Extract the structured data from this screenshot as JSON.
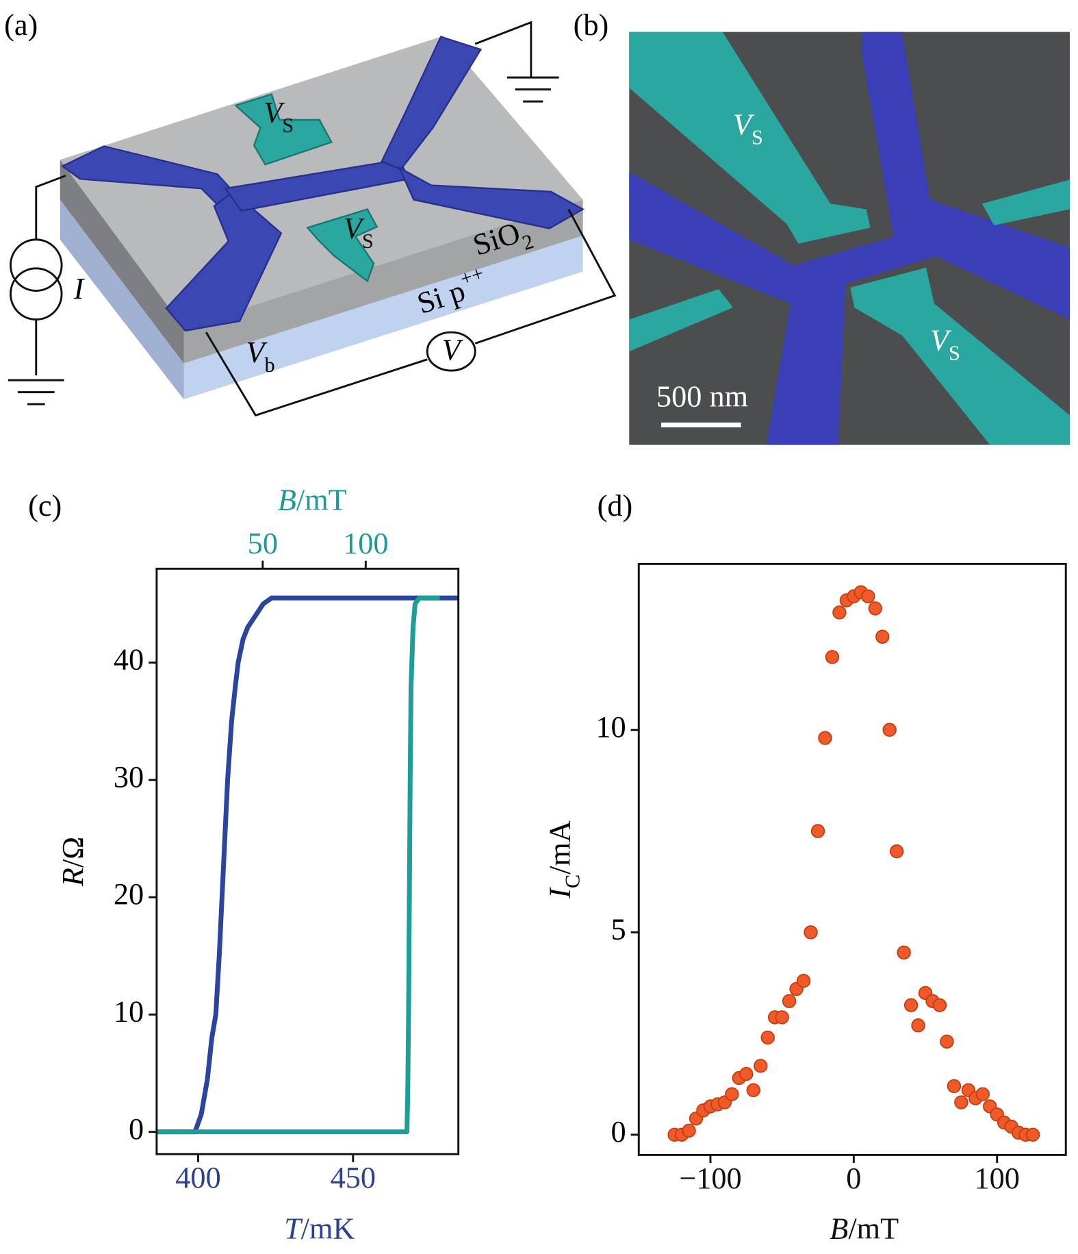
{
  "panel_a": {
    "label": "(a)",
    "vs_top": {
      "main": "V",
      "sub": "S"
    },
    "vs_bottom": {
      "main": "V",
      "sub": "S"
    },
    "sio2": {
      "main": "SiO",
      "sub": "2"
    },
    "si": {
      "main": "Si p",
      "sup": "++"
    },
    "current": "I",
    "vb": {
      "main": "V",
      "sub": "b"
    },
    "voltmeter": "V"
  },
  "panel_b": {
    "label": "(b)",
    "vs_top": {
      "main": "V",
      "sub": "S"
    },
    "vs_bottom": {
      "main": "V",
      "sub": "S"
    },
    "scale": "500 nm"
  },
  "chart_data": [
    {
      "type": "line",
      "label": "(c)",
      "xlabel": {
        "main": "T",
        "unit": "/mK"
      },
      "x2label": {
        "main": "B",
        "unit": "/mT"
      },
      "ylabel": {
        "main": "R",
        "unit": "/Ω"
      },
      "xlim": [
        386.6,
        484
      ],
      "xticks": [
        400,
        450
      ],
      "x2lim": [
        -1.5,
        145
      ],
      "x2ticks": [
        50,
        100
      ],
      "ylim": [
        -1.9,
        48
      ],
      "yticks": [
        0,
        10,
        20,
        30,
        40
      ],
      "xaxis_color": "#2b3f94",
      "x2axis_color": "#1e9a96",
      "series": [
        {
          "color": "#2a44a0",
          "x": [
            386.6,
            399,
            401,
            403,
            404.4,
            405.7,
            406.8,
            407.7,
            408.6,
            409.5,
            410.8,
            412,
            412.9,
            414.5,
            416,
            418.5,
            421,
            423.7,
            430,
            450,
            484
          ],
          "values": [
            0,
            0,
            1.5,
            4.5,
            8,
            10,
            15,
            20,
            25,
            30,
            35,
            38,
            40,
            42,
            43,
            44,
            45,
            45.5,
            45.5,
            45.5,
            45.5
          ]
        },
        {
          "color": "#1e9e98",
          "axis": "x2",
          "x": [
            -1.5,
            120,
            120.4,
            120.8,
            121.2,
            121.6,
            122,
            123,
            124,
            126,
            136
          ],
          "values": [
            0,
            0,
            3,
            10,
            20,
            30,
            38,
            43,
            45,
            45.5,
            45.5
          ]
        }
      ]
    },
    {
      "type": "scatter",
      "label": "(d)",
      "xlabel": {
        "main": "B",
        "unit": "/mT"
      },
      "ylabel": {
        "main": "I",
        "sub": "C",
        "unit": "/mA"
      },
      "xlim": [
        -150,
        148
      ],
      "xticks": [
        {
          "value": -100,
          "label": "−100"
        },
        0,
        100
      ],
      "ylim": [
        -0.5,
        14.1
      ],
      "yticks": [
        0,
        5,
        10
      ],
      "color": "#f05a28",
      "x": [
        -125,
        -120,
        -115,
        -110,
        -105,
        -100,
        -95,
        -90,
        -85,
        -80,
        -75,
        -70,
        -65,
        -60,
        -55,
        -50,
        -45,
        -40,
        -35,
        -30,
        -25,
        -20,
        -15,
        -10,
        -5,
        0,
        5,
        10,
        15,
        20,
        25,
        30,
        35,
        40,
        45,
        50,
        55,
        60,
        65,
        70,
        75,
        80,
        85,
        90,
        95,
        100,
        105,
        110,
        115,
        120,
        125
      ],
      "values": [
        0,
        0,
        0.1,
        0.4,
        0.6,
        0.7,
        0.75,
        0.8,
        1.0,
        1.4,
        1.5,
        1.1,
        1.7,
        2.4,
        2.9,
        2.9,
        3.3,
        3.6,
        3.8,
        5.0,
        7.5,
        9.8,
        11.8,
        12.9,
        13.2,
        13.3,
        13.4,
        13.3,
        13.0,
        12.3,
        10.0,
        7.0,
        4.5,
        3.2,
        2.7,
        3.5,
        3.3,
        3.2,
        2.3,
        1.2,
        0.8,
        1.1,
        0.9,
        1.0,
        0.7,
        0.5,
        0.3,
        0.2,
        0.05,
        0,
        0
      ]
    }
  ]
}
